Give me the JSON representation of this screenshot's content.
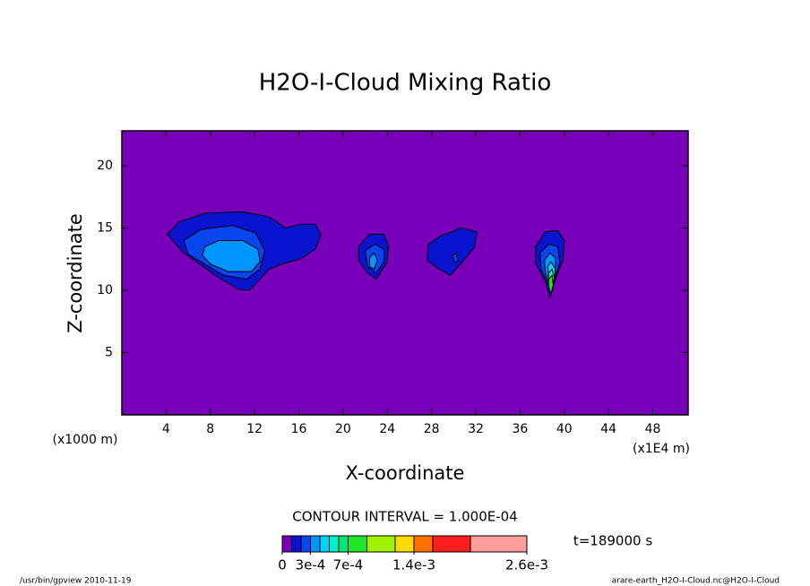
{
  "chart_data": {
    "type": "contour",
    "title": "H2O-I-Cloud Mixing Ratio",
    "x_label": "X-coordinate",
    "y_label": "Z-coordinate",
    "y_unit": "(x1000 m)",
    "x_unit": "(x1E4 m)",
    "contour_interval": "CONTOUR INTERVAL = 1.000E-04",
    "time": "t=189000 s",
    "footer_left": "/usr/bin/gpview  2010-11-19",
    "footer_right": "arare-earth_H2O-I-Cloud.nc@H2O-I-Cloud",
    "xlim": [
      0,
      51.2
    ],
    "ylim": [
      0,
      22.8
    ],
    "xticks": [
      4,
      8,
      12,
      16,
      20,
      24,
      28,
      32,
      36,
      40,
      44,
      48
    ],
    "yticks": [
      5,
      10,
      15,
      20
    ],
    "colorbar": {
      "bounds": [
        0,
        0.0001,
        0.0002,
        0.0003,
        0.0004,
        0.0005,
        0.0006,
        0.0007,
        0.0009,
        0.0012,
        0.0014,
        0.0016,
        0.002,
        0.0026
      ],
      "colors": [
        "#7800b8",
        "#0a14d0",
        "#0a46f0",
        "#0096ff",
        "#00d2ff",
        "#00f0c8",
        "#00e678",
        "#1ee628",
        "#a0f000",
        "#ffdc00",
        "#ff6e00",
        "#ff1e1e",
        "#ff9c9c"
      ],
      "ticks": [
        0,
        {
          "value": 0.0003,
          "label": "3e-4"
        },
        {
          "value": 0.0007,
          "label": "7e-4"
        },
        {
          "value": 0.0014,
          "label": "1.4e-3"
        },
        {
          "value": 0.0026,
          "label": "2.6e-3"
        }
      ]
    },
    "regions": [
      {
        "level": 0.0001,
        "points": [
          [
            4.1,
            14.5
          ],
          [
            5.2,
            15.5
          ],
          [
            7.6,
            16.2
          ],
          [
            10.9,
            16.3
          ],
          [
            13.3,
            15.9
          ],
          [
            14.8,
            15.0
          ],
          [
            16.1,
            15.3
          ],
          [
            17.5,
            15.3
          ],
          [
            18.0,
            14.5
          ],
          [
            17.5,
            13.3
          ],
          [
            16.1,
            12.5
          ],
          [
            14.8,
            12.2
          ],
          [
            13.3,
            11.7
          ],
          [
            12.5,
            10.9
          ],
          [
            11.5,
            10.0
          ],
          [
            10.5,
            10.1
          ],
          [
            8.8,
            11.0
          ],
          [
            7.2,
            12.0
          ],
          [
            5.6,
            13.0
          ]
        ]
      },
      {
        "level": 0.0002,
        "points": [
          [
            5.6,
            14.0
          ],
          [
            7.2,
            14.9
          ],
          [
            10.0,
            15.2
          ],
          [
            12.1,
            14.6
          ],
          [
            12.9,
            13.2
          ],
          [
            12.5,
            11.7
          ],
          [
            11.3,
            10.9
          ],
          [
            9.2,
            11.2
          ],
          [
            7.5,
            12.1
          ],
          [
            6.0,
            12.9
          ]
        ]
      },
      {
        "level": 0.0003,
        "points": [
          [
            7.5,
            13.5
          ],
          [
            8.8,
            14.0
          ],
          [
            10.9,
            14.0
          ],
          [
            12.3,
            13.3
          ],
          [
            12.5,
            12.3
          ],
          [
            11.7,
            11.5
          ],
          [
            9.6,
            11.5
          ],
          [
            8.0,
            12.1
          ],
          [
            7.3,
            12.8
          ]
        ]
      },
      {
        "level": 0.0001,
        "points": [
          [
            21.4,
            13.5
          ],
          [
            22.4,
            14.5
          ],
          [
            23.7,
            14.5
          ],
          [
            24.1,
            13.5
          ],
          [
            24.0,
            12.3
          ],
          [
            23.0,
            10.9
          ],
          [
            22.2,
            11.4
          ],
          [
            21.4,
            12.4
          ]
        ]
      },
      {
        "level": 0.0002,
        "points": [
          [
            22.0,
            13.2
          ],
          [
            22.9,
            13.7
          ],
          [
            23.7,
            13.3
          ],
          [
            23.7,
            12.3
          ],
          [
            23.0,
            11.4
          ],
          [
            22.2,
            11.9
          ]
        ]
      },
      {
        "level": 0.0003,
        "points": [
          [
            22.4,
            12.6
          ],
          [
            22.8,
            13.0
          ],
          [
            23.1,
            12.4
          ],
          [
            22.8,
            11.7
          ],
          [
            22.4,
            11.9
          ]
        ]
      },
      {
        "level": 0.0001,
        "points": [
          [
            27.7,
            13.7
          ],
          [
            28.9,
            14.4
          ],
          [
            30.7,
            15.0
          ],
          [
            32.1,
            14.7
          ],
          [
            31.9,
            13.5
          ],
          [
            30.9,
            12.4
          ],
          [
            29.7,
            11.2
          ],
          [
            28.7,
            11.7
          ],
          [
            27.6,
            12.4
          ]
        ]
      },
      {
        "level": 0.0002,
        "points": [
          [
            29.9,
            12.8
          ],
          [
            30.2,
            13.0
          ],
          [
            30.4,
            12.4
          ],
          [
            30.1,
            12.2
          ]
        ]
      },
      {
        "level": 0.0001,
        "points": [
          [
            37.4,
            13.5
          ],
          [
            38.3,
            14.7
          ],
          [
            39.4,
            14.8
          ],
          [
            40.0,
            14.0
          ],
          [
            39.9,
            12.5
          ],
          [
            39.2,
            10.9
          ],
          [
            38.7,
            9.4
          ],
          [
            38.3,
            10.7
          ],
          [
            37.4,
            12.2
          ]
        ]
      },
      {
        "level": 0.0002,
        "points": [
          [
            37.8,
            13.0
          ],
          [
            38.6,
            13.7
          ],
          [
            39.4,
            13.5
          ],
          [
            39.6,
            12.3
          ],
          [
            39.0,
            10.4
          ],
          [
            38.6,
            10.4
          ],
          [
            37.9,
            11.7
          ]
        ]
      },
      {
        "level": 0.0003,
        "points": [
          [
            38.2,
            12.4
          ],
          [
            38.7,
            13.0
          ],
          [
            39.2,
            12.6
          ],
          [
            39.2,
            11.4
          ],
          [
            38.8,
            10.1
          ],
          [
            38.3,
            11.4
          ]
        ]
      },
      {
        "level": 0.0004,
        "points": [
          [
            38.5,
            11.9
          ],
          [
            38.8,
            12.3
          ],
          [
            39.2,
            11.7
          ],
          [
            39.0,
            10.4
          ],
          [
            38.6,
            10.9
          ]
        ]
      },
      {
        "level": 0.0005,
        "points": [
          [
            38.6,
            11.4
          ],
          [
            38.9,
            11.7
          ],
          [
            39.1,
            11.0
          ],
          [
            38.9,
            9.9
          ],
          [
            38.6,
            10.6
          ]
        ]
      },
      {
        "level": 0.0007,
        "points": [
          [
            38.6,
            10.9
          ],
          [
            38.9,
            11.2
          ],
          [
            39.0,
            10.4
          ],
          [
            38.8,
            9.7
          ],
          [
            38.6,
            10.3
          ]
        ]
      }
    ]
  }
}
